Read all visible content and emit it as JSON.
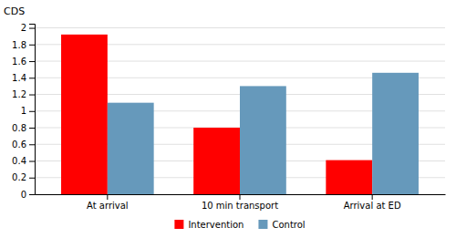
{
  "chart_data": {
    "type": "bar",
    "ylabel": "CDS",
    "categories": [
      "At arrival",
      "10 min transport",
      "Arrival at ED"
    ],
    "series": [
      {
        "name": "Intervention",
        "color": "#FF0000",
        "values": [
          1.92,
          0.8,
          0.41
        ]
      },
      {
        "name": "Control",
        "color": "#6699BB",
        "values": [
          1.1,
          1.3,
          1.46
        ]
      }
    ],
    "ylim": [
      0,
      2.05
    ],
    "yticks": [
      0,
      0.2,
      0.4,
      0.6,
      0.8,
      1,
      1.2,
      1.4,
      1.6,
      1.8,
      2
    ],
    "grid": true,
    "legend": "bottom"
  }
}
